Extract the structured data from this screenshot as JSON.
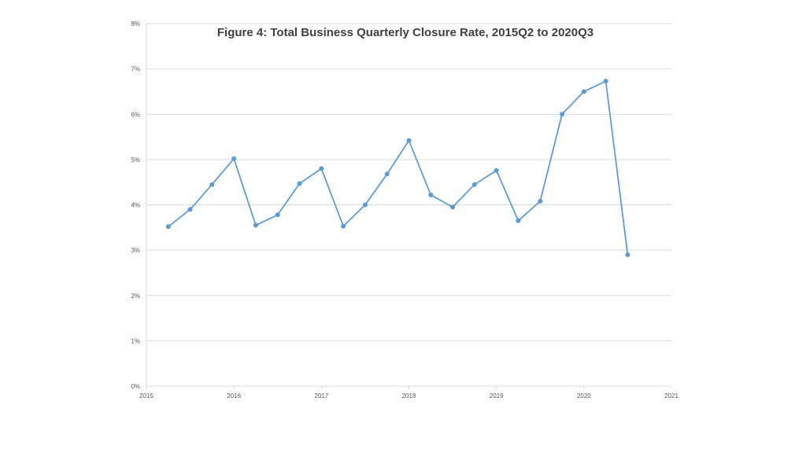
{
  "chart_data": {
    "type": "line",
    "title": "Figure 4: Total Business Quarterly Closure Rate, 2015Q2 to 2020Q3",
    "xlabel": "",
    "ylabel": "",
    "xlim": [
      2015,
      2021
    ],
    "ylim": [
      0,
      8
    ],
    "x_ticks": [
      2015,
      2016,
      2017,
      2018,
      2019,
      2020,
      2021
    ],
    "x_tick_labels": [
      "2015",
      "2016",
      "2017",
      "2018",
      "2019",
      "2020",
      "2021"
    ],
    "y_ticks": [
      0,
      1,
      2,
      3,
      4,
      5,
      6,
      7,
      8
    ],
    "y_tick_labels": [
      "0%",
      "1%",
      "2%",
      "3%",
      "4%",
      "5%",
      "6%",
      "7%",
      "8%"
    ],
    "grid": true,
    "legend": "none",
    "series": [
      {
        "color": "#5b9bd5",
        "x": [
          2015.25,
          2015.5,
          2015.75,
          2016.0,
          2016.25,
          2016.5,
          2016.75,
          2017.0,
          2017.25,
          2017.5,
          2017.75,
          2018.0,
          2018.25,
          2018.5,
          2018.75,
          2019.0,
          2019.25,
          2019.5,
          2019.75,
          2020.0,
          2020.25,
          2020.5
        ],
        "values": [
          3.52,
          3.9,
          4.45,
          5.02,
          3.55,
          3.78,
          4.47,
          4.8,
          3.53,
          4.0,
          4.68,
          5.42,
          4.22,
          3.95,
          4.45,
          4.76,
          3.65,
          4.08,
          6.0,
          6.5,
          6.73,
          2.9
        ]
      }
    ]
  }
}
